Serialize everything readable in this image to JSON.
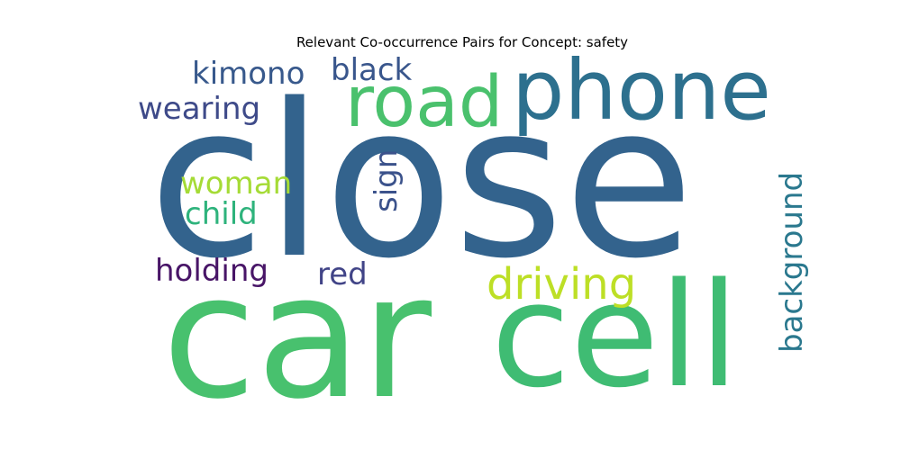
{
  "title": "Relevant Co-occurrence Pairs for Concept: safety",
  "words": [
    {
      "text": "close",
      "color": "#33638d"
    },
    {
      "text": "car",
      "color": "#48c16e"
    },
    {
      "text": "cell",
      "color": "#3fbc73"
    },
    {
      "text": "phone",
      "color": "#2d708e"
    },
    {
      "text": "road",
      "color": "#4ac16d"
    },
    {
      "text": "driving",
      "color": "#bddf26"
    },
    {
      "text": "kimono",
      "color": "#38598c"
    },
    {
      "text": "black",
      "color": "#39568c"
    },
    {
      "text": "wearing",
      "color": "#3e4a89"
    },
    {
      "text": "woman",
      "color": "#a5db36"
    },
    {
      "text": "child",
      "color": "#2eb37c"
    },
    {
      "text": "sign",
      "color": "#3b528b"
    },
    {
      "text": "holding",
      "color": "#481567"
    },
    {
      "text": "red",
      "color": "#414487"
    },
    {
      "text": "background",
      "color": "#2a788e"
    }
  ]
}
